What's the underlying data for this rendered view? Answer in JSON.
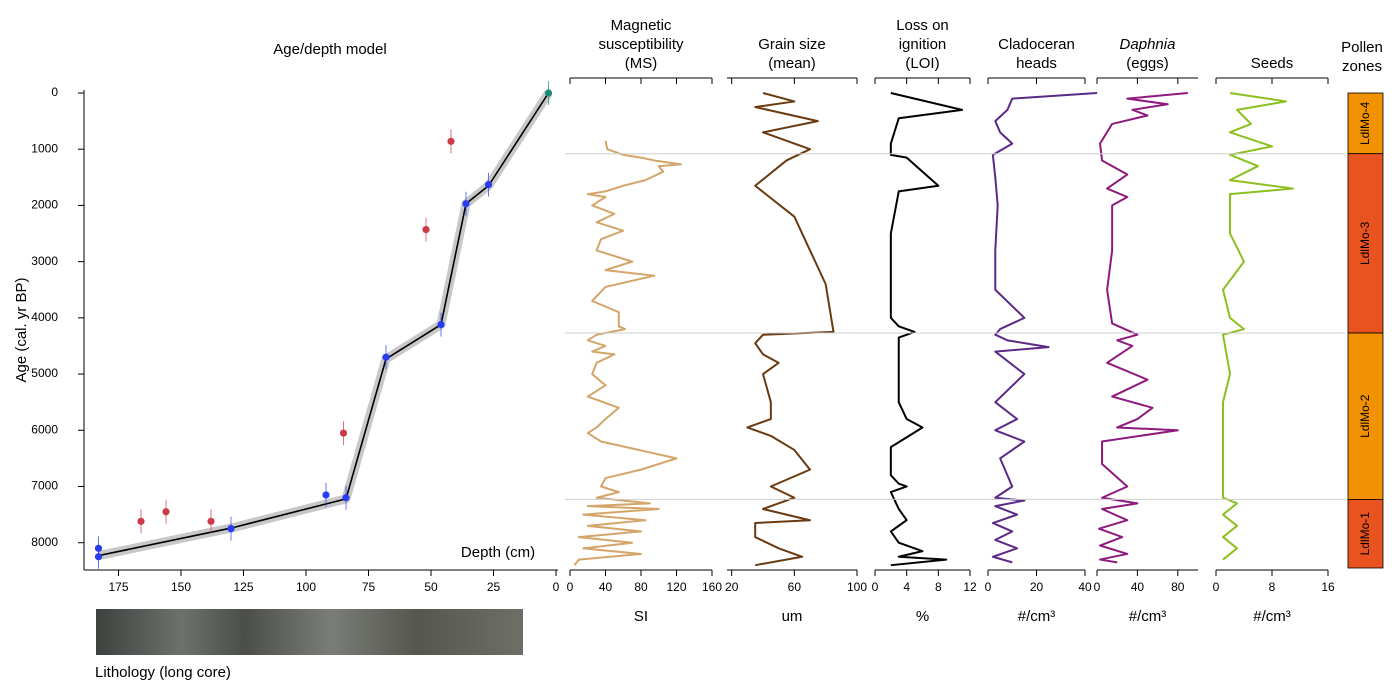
{
  "chart_data": [
    {
      "type": "age-depth",
      "title": "Age/depth model",
      "x_label": "Depth (cm)",
      "y_label": "Age (cal. yr BP)",
      "lithology_label": "Lithology (long core)",
      "xlim": [
        188,
        0
      ],
      "ylim": [
        8450,
        0
      ],
      "xticks": [
        175,
        150,
        125,
        100,
        75,
        50,
        25,
        0
      ],
      "yticks": [
        0,
        1000,
        2000,
        3000,
        4000,
        5000,
        6000,
        7000,
        8000
      ],
      "series": [
        {
          "kind": "line",
          "color": "#000000",
          "x": [
            183,
            130,
            84,
            68,
            46,
            36,
            27,
            3
          ],
          "values": [
            8230,
            7740,
            7220,
            4730,
            4120,
            1970,
            1650,
            0
          ]
        },
        {
          "kind": "scatter",
          "color": "#2a3cf0",
          "x": [
            183,
            183,
            130,
            92,
            84,
            68,
            46,
            36,
            27
          ],
          "values": [
            8100,
            8250,
            7750,
            7150,
            7200,
            4700,
            4120,
            1970,
            1630
          ]
        },
        {
          "kind": "scatter",
          "color": "#1a8a7a",
          "x": [
            3
          ],
          "values": [
            0
          ]
        },
        {
          "kind": "scatter",
          "color": "#cc3b4a",
          "x": [
            166,
            156,
            138,
            85,
            52,
            42
          ],
          "values": [
            7620,
            7450,
            7620,
            6050,
            2430,
            860
          ]
        }
      ]
    },
    {
      "type": "strat",
      "title": [
        "Magnetic",
        "susceptibility",
        "(MS)"
      ],
      "x_label": "SI",
      "color": "#d4a56a",
      "xlim": [
        0,
        160
      ],
      "xticks": [
        0,
        40,
        80,
        120,
        160
      ],
      "ylim": [
        8450,
        0
      ],
      "values": [
        40,
        42,
        60,
        80,
        95,
        125,
        100,
        105,
        85,
        60,
        40,
        20,
        40,
        25,
        50,
        30,
        60,
        35,
        30,
        70,
        40,
        95,
        40,
        25,
        55,
        55,
        62,
        30,
        20,
        40,
        25,
        50,
        30,
        25,
        40,
        20,
        55,
        40,
        30,
        20,
        35,
        120,
        80,
        40,
        35,
        55,
        30,
        90,
        20,
        100,
        15,
        85,
        20,
        80,
        10,
        70,
        15,
        80,
        10,
        5
      ],
      "ages": [
        850,
        1000,
        1100,
        1150,
        1200,
        1270,
        1300,
        1400,
        1550,
        1650,
        1750,
        1800,
        1850,
        2000,
        2150,
        2300,
        2450,
        2600,
        2800,
        3000,
        3150,
        3250,
        3450,
        3700,
        3900,
        4150,
        4200,
        4300,
        4400,
        4500,
        4600,
        4650,
        4800,
        5000,
        5200,
        5400,
        5600,
        5800,
        5950,
        6050,
        6200,
        6500,
        6700,
        6850,
        7000,
        7100,
        7200,
        7300,
        7350,
        7400,
        7500,
        7600,
        7700,
        7800,
        7900,
        8000,
        8100,
        8200,
        8300,
        8400
      ]
    },
    {
      "type": "strat",
      "title": [
        "Grain size",
        "(mean)"
      ],
      "x_label": "um",
      "color": "#6b3a10",
      "xlim": [
        17,
        100
      ],
      "xticks": [
        20,
        60,
        100
      ],
      "ylim": [
        8450,
        0
      ],
      "values": [
        40,
        60,
        35,
        75,
        40,
        70,
        55,
        35,
        60,
        70,
        80,
        85,
        40,
        35,
        40,
        50,
        40,
        45,
        45,
        30,
        45,
        60,
        70,
        45,
        60,
        40,
        70,
        35,
        35,
        50,
        65,
        35
      ],
      "ages": [
        0,
        150,
        250,
        500,
        700,
        1000,
        1200,
        1650,
        2200,
        2800,
        3400,
        4250,
        4300,
        4450,
        4650,
        4800,
        5000,
        5500,
        5800,
        5950,
        6100,
        6350,
        6700,
        7000,
        7200,
        7400,
        7600,
        7650,
        7900,
        8100,
        8250,
        8400
      ]
    },
    {
      "type": "strat",
      "title": [
        "Loss on",
        "ignition",
        "(LOI)"
      ],
      "x_label": "%",
      "color": "#000000",
      "xlim": [
        0,
        12
      ],
      "xticks": [
        0,
        4,
        8,
        12
      ],
      "ylim": [
        8450,
        0
      ],
      "values": [
        2,
        11,
        3,
        2,
        2,
        4,
        8,
        3,
        2,
        2,
        2,
        3,
        5,
        3,
        3,
        3,
        4,
        6,
        2,
        2,
        3,
        4,
        2,
        3,
        4,
        2,
        3,
        6,
        3,
        9,
        2
      ],
      "ages": [
        0,
        300,
        450,
        900,
        1100,
        1150,
        1650,
        1750,
        2500,
        3500,
        4000,
        4150,
        4250,
        4350,
        5000,
        5500,
        5800,
        5950,
        6300,
        6800,
        6950,
        7000,
        7100,
        7400,
        7600,
        7800,
        8000,
        8150,
        8250,
        8300,
        8400
      ]
    },
    {
      "type": "strat",
      "title": [
        "Cladoceran",
        "heads"
      ],
      "x_label": "#/cm³",
      "color": "#5b2a86",
      "xlim": [
        0,
        40
      ],
      "xticks": [
        0,
        20,
        40
      ],
      "ylim": [
        8450,
        0
      ],
      "values": [
        45,
        10,
        8,
        3,
        5,
        10,
        2,
        3,
        4,
        3,
        3,
        15,
        5,
        3,
        8,
        25,
        3,
        15,
        3,
        12,
        3,
        15,
        5,
        10,
        3,
        15,
        3,
        12,
        2,
        10,
        3,
        12,
        2,
        10
      ],
      "ages": [
        0,
        100,
        300,
        500,
        700,
        900,
        1100,
        1500,
        2000,
        2800,
        3500,
        4000,
        4200,
        4300,
        4400,
        4520,
        4600,
        5000,
        5500,
        5800,
        6000,
        6200,
        6500,
        7000,
        7200,
        7250,
        7350,
        7500,
        7650,
        7800,
        7950,
        8100,
        8250,
        8350
      ]
    },
    {
      "type": "strat",
      "title": [
        "Daphnia",
        "(eggs)"
      ],
      "italic_lines": [
        0
      ],
      "x_label": "#/cm³",
      "color": "#8e1a7e",
      "xlim": [
        0,
        100
      ],
      "xticks": [
        0,
        40,
        80
      ],
      "ylim": [
        8450,
        0
      ],
      "values": [
        90,
        30,
        70,
        35,
        50,
        15,
        3,
        5,
        30,
        10,
        30,
        15,
        15,
        10,
        15,
        40,
        20,
        35,
        10,
        50,
        15,
        55,
        40,
        20,
        80,
        5,
        5,
        30,
        5,
        40,
        5,
        30,
        2,
        25,
        3,
        30,
        3,
        20
      ],
      "ages": [
        0,
        100,
        200,
        300,
        400,
        550,
        900,
        1200,
        1450,
        1700,
        1850,
        2000,
        2800,
        3500,
        4100,
        4300,
        4400,
        4500,
        4800,
        5100,
        5400,
        5600,
        5800,
        5950,
        6000,
        6200,
        6600,
        7000,
        7200,
        7300,
        7400,
        7600,
        7750,
        7900,
        8050,
        8200,
        8300,
        8350
      ]
    },
    {
      "type": "strat",
      "title": [
        "Seeds"
      ],
      "x_label": "#/cm³",
      "color": "#8cbf1f",
      "xlim": [
        0,
        16
      ],
      "xticks": [
        0,
        8,
        16
      ],
      "ylim": [
        8450,
        0
      ],
      "values": [
        2,
        10,
        3,
        5,
        2,
        8,
        2,
        6,
        2,
        11,
        2,
        2,
        4,
        1,
        2,
        4,
        1,
        2,
        1,
        1,
        1,
        3,
        1,
        3,
        1,
        3,
        1
      ],
      "ages": [
        0,
        150,
        300,
        550,
        700,
        950,
        1100,
        1300,
        1550,
        1700,
        1800,
        2500,
        3000,
        3500,
        4000,
        4200,
        4300,
        5000,
        5500,
        6500,
        7200,
        7300,
        7500,
        7700,
        7900,
        8100,
        8300
      ]
    },
    {
      "type": "zones",
      "title": [
        "Pollen",
        "zones"
      ],
      "ylim": [
        8450,
        0
      ],
      "zones": [
        {
          "label": "LdlMo-4",
          "from": 0,
          "to": 1080,
          "color": "#f39200"
        },
        {
          "label": "LdlMo-3",
          "from": 1080,
          "to": 4270,
          "color": "#e8531f"
        },
        {
          "label": "LdlMo-2",
          "from": 4270,
          "to": 7230,
          "color": "#f39200"
        },
        {
          "label": "LdlMo-1",
          "from": 7230,
          "to": 8450,
          "color": "#e8531f"
        }
      ]
    }
  ]
}
